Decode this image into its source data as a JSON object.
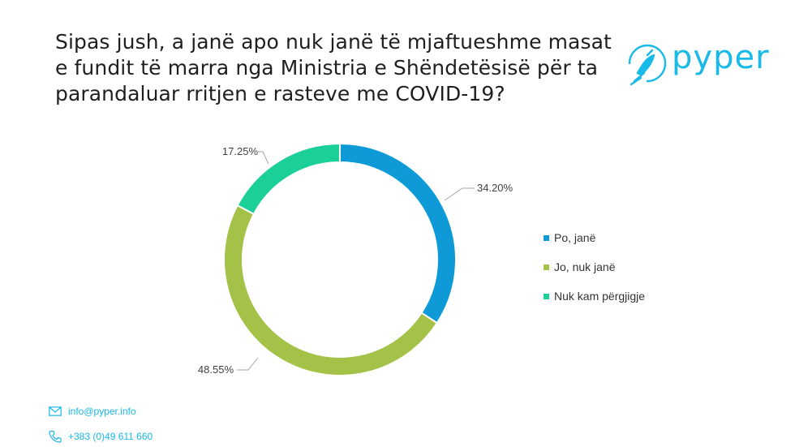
{
  "title_lines": [
    "Sipas jush, a janë apo nuk janë të mjaftueshme masat",
    "e fundit të marra nga Ministria e Shëndetësisë për ta",
    "parandaluar rritjen e rasteve me COVID-19?"
  ],
  "brand": {
    "name": "pyper",
    "color": "#19b9e8",
    "icon": "bird-logo-icon"
  },
  "chart_data": {
    "type": "pie",
    "subtype": "donut",
    "categories": [
      "Po, janë",
      "Jo, nuk janë",
      "Nuk kam përgjigje"
    ],
    "values": [
      34.2,
      48.55,
      17.25
    ],
    "labels": [
      "34.20%",
      "48.55%",
      "17.25%"
    ],
    "colors": [
      "#0d9ad7",
      "#a4c148",
      "#1bcf98"
    ],
    "legend_position": "right"
  },
  "footer": {
    "email": "info@pyper.info",
    "phone": "+383 (0)49 611 660",
    "email_icon": "mail-icon",
    "phone_icon": "phone-icon"
  }
}
